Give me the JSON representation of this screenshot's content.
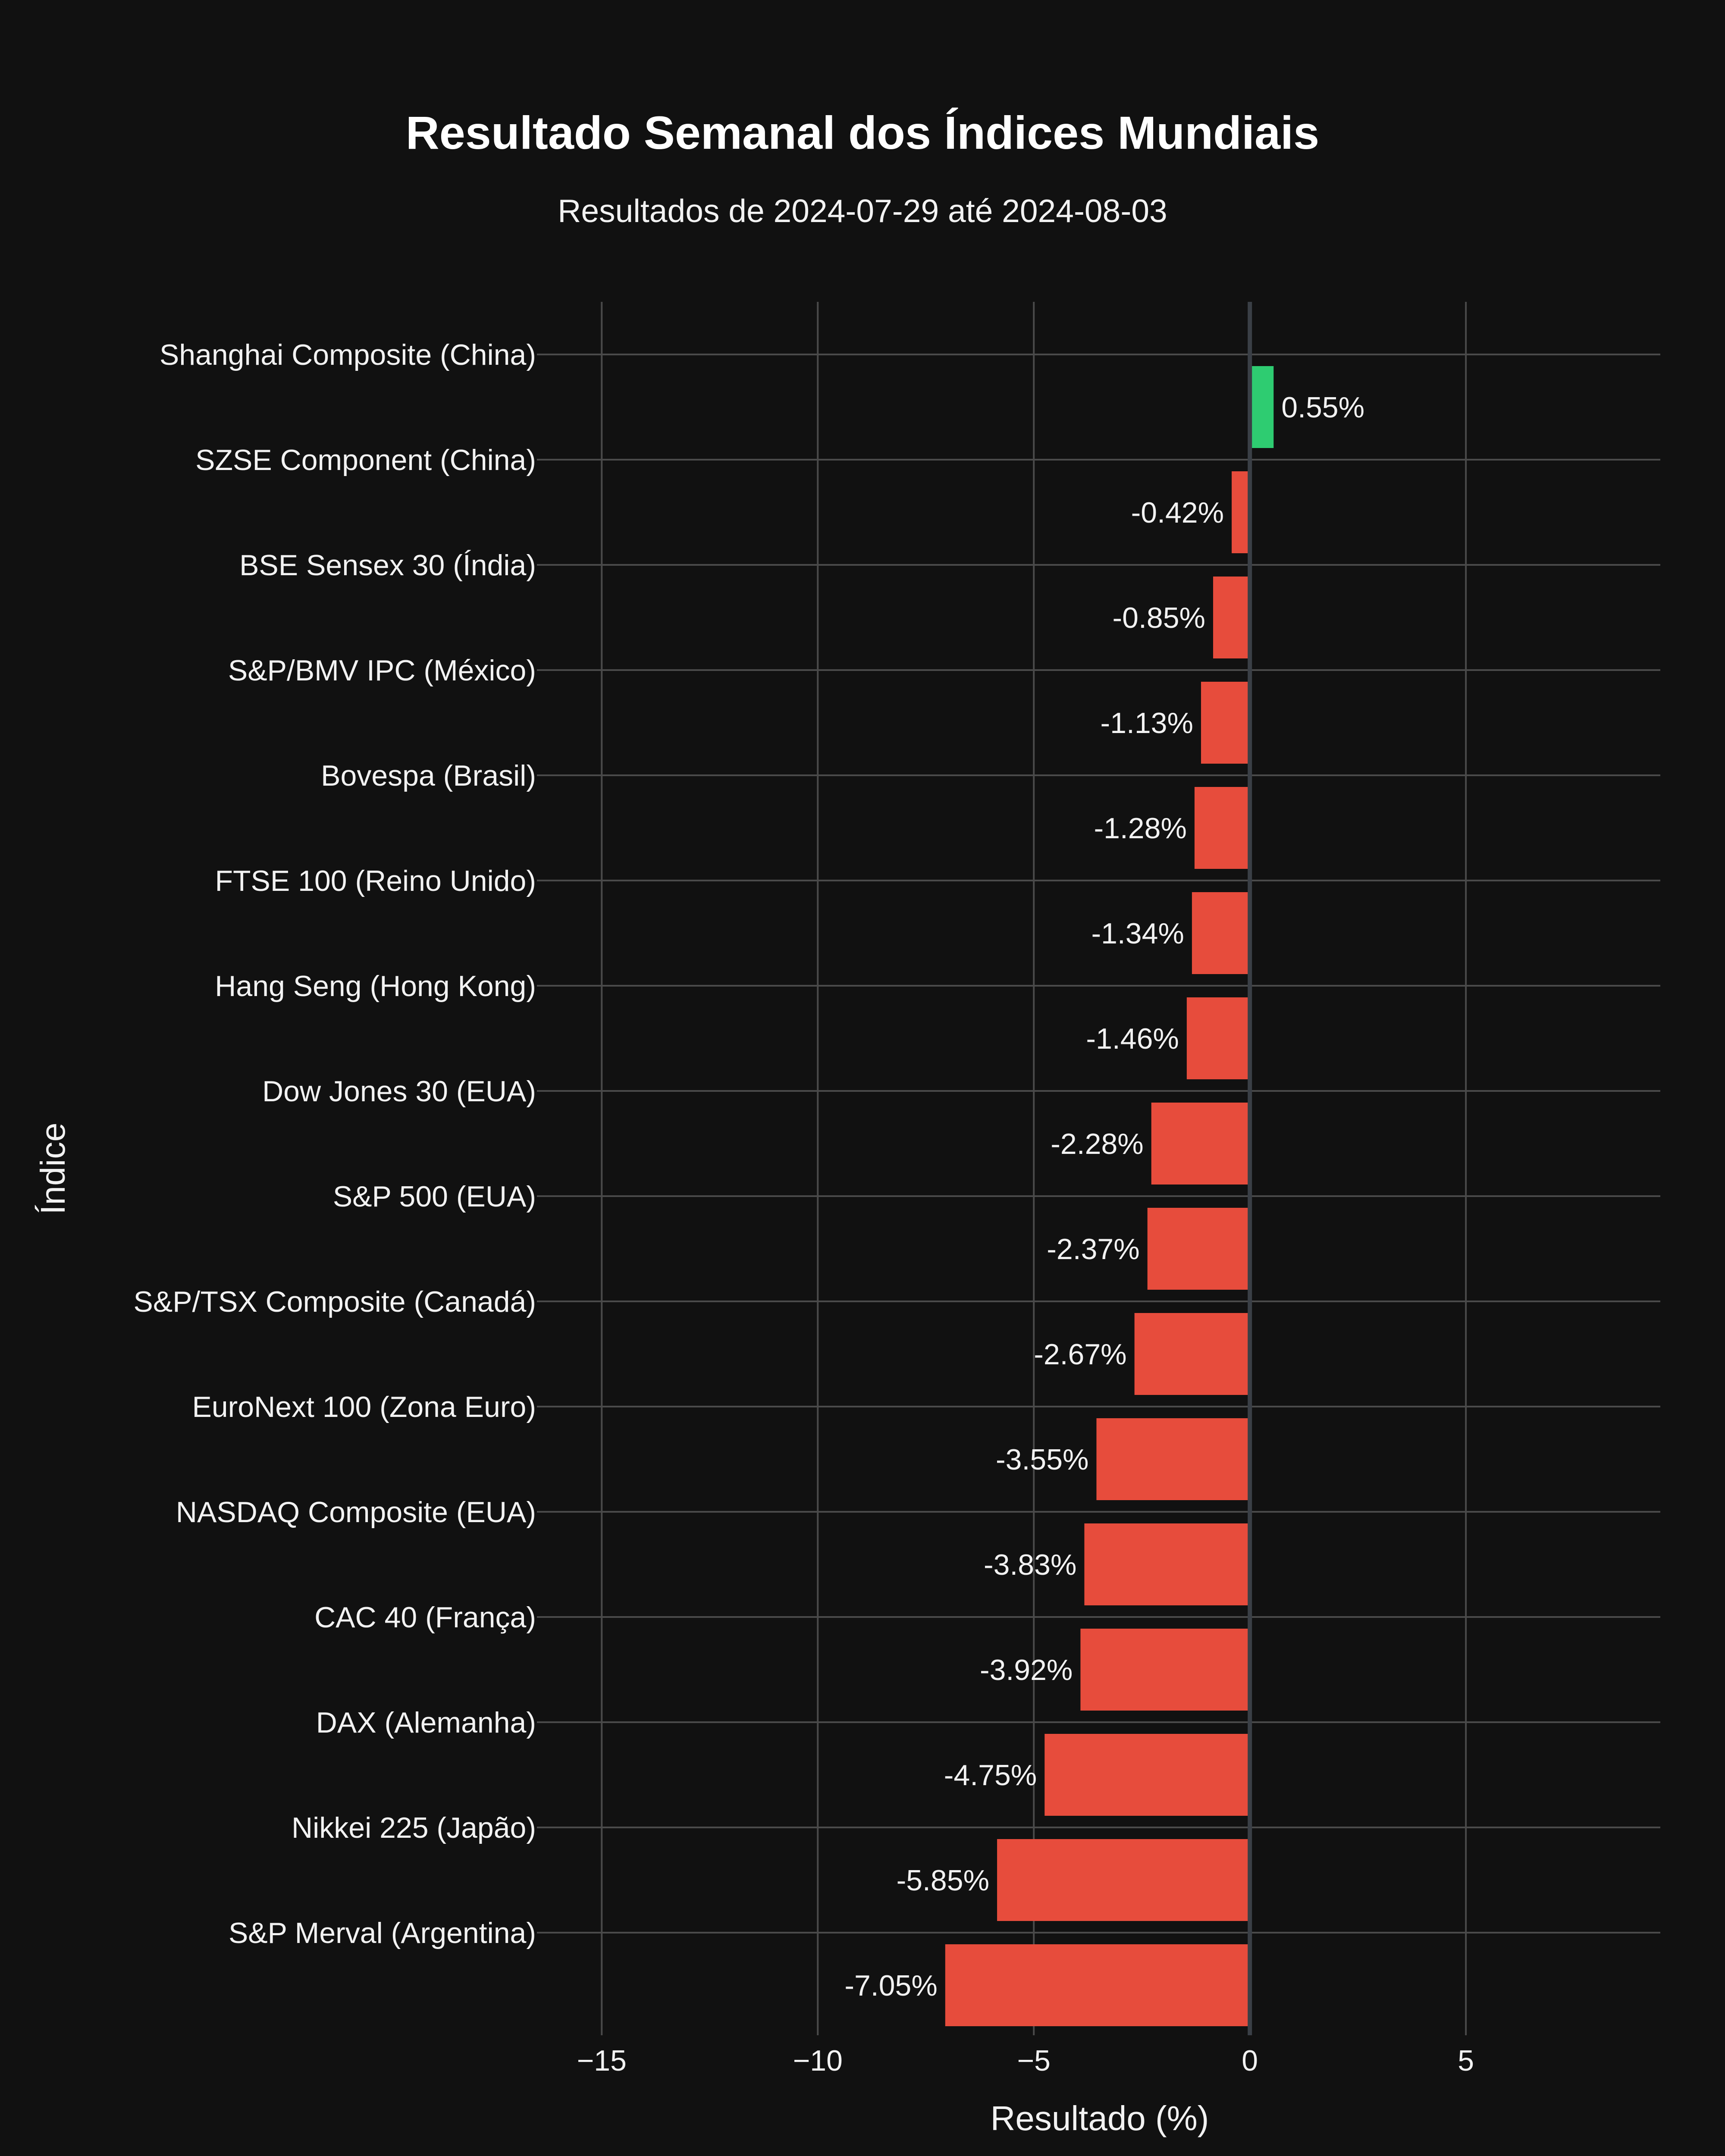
{
  "chart_data": {
    "type": "bar",
    "orientation": "horizontal",
    "title": "Resultado Semanal dos Índices Mundiais",
    "subtitle": "Resultados de 2024-07-29 até 2024-08-03",
    "xlabel": "Resultado (%)",
    "ylabel": "Índice",
    "xlim": [
      -16.5,
      9.5
    ],
    "xticks": [
      -15,
      -10,
      -5,
      0,
      5
    ],
    "xtick_labels": [
      "−15",
      "−10",
      "−5",
      "0",
      "5"
    ],
    "grid": true,
    "categories": [
      "Shanghai Composite (China)",
      "SZSE Component (China)",
      "BSE Sensex 30 (Índia)",
      "S&P/BMV IPC (México)",
      "Bovespa (Brasil)",
      "FTSE 100 (Reino Unido)",
      "Hang Seng (Hong Kong)",
      "Dow Jones 30 (EUA)",
      "S&P 500 (EUA)",
      "S&P/TSX Composite (Canadá)",
      "EuroNext 100 (Zona Euro)",
      "NASDAQ Composite (EUA)",
      "CAC 40 (França)",
      "DAX (Alemanha)",
      "Nikkei 225 (Japão)",
      "S&P Merval (Argentina)"
    ],
    "values": [
      0.55,
      -0.42,
      -0.85,
      -1.13,
      -1.28,
      -1.34,
      -1.46,
      -2.28,
      -2.37,
      -2.67,
      -3.55,
      -3.83,
      -3.92,
      -4.75,
      -5.85,
      -7.05
    ],
    "value_labels": [
      "0.55%",
      "-0.42%",
      "-0.85%",
      "-1.13%",
      "-1.28%",
      "-1.34%",
      "-1.46%",
      "-2.28%",
      "-2.37%",
      "-2.67%",
      "-3.55%",
      "-3.83%",
      "-3.92%",
      "-4.75%",
      "-5.85%",
      "-7.05%"
    ],
    "colors": {
      "positive": "#2ecc71",
      "negative": "#e74c3c",
      "background": "#111111"
    }
  }
}
